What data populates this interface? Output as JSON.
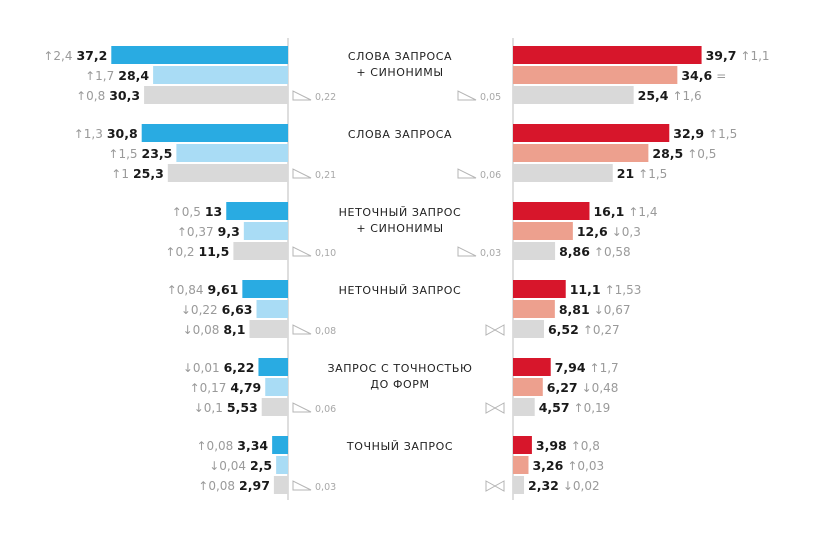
{
  "chart_data": {
    "type": "bar",
    "layout": "diverging-horizontal",
    "colors": {
      "left": [
        "#29abe2",
        "#a9dcf5",
        "#d9d9d9"
      ],
      "right": [
        "#d7162b",
        "#eda08e",
        "#d9d9d9"
      ],
      "axis": "#bdbdbd",
      "diff_icon": "#b5b5b5"
    },
    "scale_max": 40,
    "groups": [
      {
        "category": [
          "СЛОВА ЗАПРОСА",
          "+ СИНОНИМЫ"
        ],
        "left": [
          {
            "value": 37.2,
            "label": "37,2",
            "delta": "↑2,4"
          },
          {
            "value": 28.4,
            "label": "28,4",
            "delta": "↑1,7"
          },
          {
            "value": 30.3,
            "label": "30,3",
            "delta": "↑0,8"
          }
        ],
        "right": [
          {
            "value": 39.7,
            "label": "39,7",
            "delta": "↑1,1"
          },
          {
            "value": 34.6,
            "label": "34,6",
            "delta": "="
          },
          {
            "value": 25.4,
            "label": "25,4",
            "delta": "↑1,6"
          }
        ],
        "left_diff": {
          "icon": "triangle-icon",
          "label": "0,22"
        },
        "right_diff": {
          "icon": "triangle-icon",
          "label": "0,05"
        }
      },
      {
        "category": [
          "СЛОВА ЗАПРОСА"
        ],
        "left": [
          {
            "value": 30.8,
            "label": "30,8",
            "delta": "↑1,3"
          },
          {
            "value": 23.5,
            "label": "23,5",
            "delta": "↑1,5"
          },
          {
            "value": 25.3,
            "label": "25,3",
            "delta": "↑1"
          }
        ],
        "right": [
          {
            "value": 32.9,
            "label": "32,9",
            "delta": "↑1,5"
          },
          {
            "value": 28.5,
            "label": "28,5",
            "delta": "↑0,5"
          },
          {
            "value": 21,
            "label": "21",
            "delta": "↑1,5"
          }
        ],
        "left_diff": {
          "icon": "triangle-icon",
          "label": "0,21"
        },
        "right_diff": {
          "icon": "triangle-icon",
          "label": "0,06"
        }
      },
      {
        "category": [
          "НЕТОЧНЫЙ ЗАПРОС",
          "+ СИНОНИМЫ"
        ],
        "left": [
          {
            "value": 13,
            "label": "13",
            "delta": "↑0,5"
          },
          {
            "value": 9.3,
            "label": "9,3",
            "delta": "↑0,37"
          },
          {
            "value": 11.5,
            "label": "11,5",
            "delta": "↑0,2"
          }
        ],
        "right": [
          {
            "value": 16.1,
            "label": "16,1",
            "delta": "↑1,4"
          },
          {
            "value": 12.6,
            "label": "12,6",
            "delta": "↓0,3"
          },
          {
            "value": 8.86,
            "label": "8,86",
            "delta": "↑0,58"
          }
        ],
        "left_diff": {
          "icon": "triangle-icon",
          "label": "0,10"
        },
        "right_diff": {
          "icon": "triangle-icon",
          "label": "0,03"
        }
      },
      {
        "category": [
          "НЕТОЧНЫЙ ЗАПРОС"
        ],
        "left": [
          {
            "value": 9.61,
            "label": "9,61",
            "delta": "↑0,84"
          },
          {
            "value": 6.63,
            "label": "6,63",
            "delta": "↓0,22"
          },
          {
            "value": 8.1,
            "label": "8,1",
            "delta": "↓0,08"
          }
        ],
        "right": [
          {
            "value": 11.1,
            "label": "11,1",
            "delta": "↑1,53"
          },
          {
            "value": 8.81,
            "label": "8,81",
            "delta": "↓0,67"
          },
          {
            "value": 6.52,
            "label": "6,52",
            "delta": "↑0,27"
          }
        ],
        "left_diff": {
          "icon": "triangle-icon",
          "label": "0,08"
        },
        "right_diff": {
          "icon": "bowtie-icon",
          "label": ""
        }
      },
      {
        "category": [
          "ЗАПРОС С ТОЧНОСТЬЮ",
          "ДО ФОРМ"
        ],
        "left": [
          {
            "value": 6.22,
            "label": "6,22",
            "delta": "↓0,01"
          },
          {
            "value": 4.79,
            "label": "4,79",
            "delta": "↑0,17"
          },
          {
            "value": 5.53,
            "label": "5,53",
            "delta": "↓0,1"
          }
        ],
        "right": [
          {
            "value": 7.94,
            "label": "7,94",
            "delta": "↑1,7"
          },
          {
            "value": 6.27,
            "label": "6,27",
            "delta": "↓0,48"
          },
          {
            "value": 4.57,
            "label": "4,57",
            "delta": "↑0,19"
          }
        ],
        "left_diff": {
          "icon": "triangle-icon",
          "label": "0,06"
        },
        "right_diff": {
          "icon": "bowtie-icon",
          "label": ""
        }
      },
      {
        "category": [
          "ТОЧНЫЙ ЗАПРОС"
        ],
        "left": [
          {
            "value": 3.34,
            "label": "3,34",
            "delta": "↑0,08"
          },
          {
            "value": 2.5,
            "label": "2,5",
            "delta": "↓0,04"
          },
          {
            "value": 2.97,
            "label": "2,97",
            "delta": "↑0,08"
          }
        ],
        "right": [
          {
            "value": 3.98,
            "label": "3,98",
            "delta": "↑0,8"
          },
          {
            "value": 3.26,
            "label": "3,26",
            "delta": "↑0,03"
          },
          {
            "value": 2.32,
            "label": "2,32",
            "delta": "↓0,02"
          }
        ],
        "left_diff": {
          "icon": "triangle-icon",
          "label": "0,03"
        },
        "right_diff": {
          "icon": "bowtie-icon",
          "label": ""
        }
      }
    ]
  }
}
